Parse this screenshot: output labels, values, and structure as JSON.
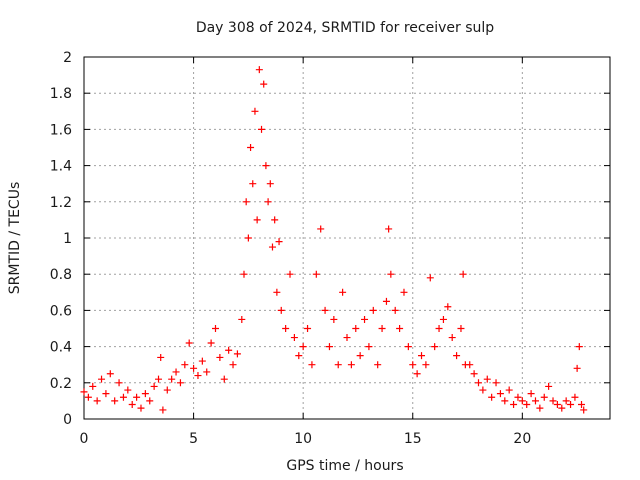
{
  "chart_data": {
    "type": "scatter",
    "title": "Day 308 of 2024, SRMTID for receiver sulp",
    "xlabel": "GPS time / hours",
    "ylabel": "SRMTID / TECUs",
    "xlim": [
      0,
      24
    ],
    "ylim": [
      0,
      2
    ],
    "x_ticks": [
      {
        "value": 0,
        "label": "0"
      },
      {
        "value": 5,
        "label": "5"
      },
      {
        "value": 10,
        "label": "10"
      },
      {
        "value": 15,
        "label": "15"
      },
      {
        "value": 20,
        "label": "20"
      }
    ],
    "y_ticks": [
      {
        "value": 0,
        "label": "0"
      },
      {
        "value": 0.2,
        "label": "0.2"
      },
      {
        "value": 0.4,
        "label": "0.4"
      },
      {
        "value": 0.6,
        "label": "0.6"
      },
      {
        "value": 0.8,
        "label": "0.8"
      },
      {
        "value": 1.0,
        "label": "1"
      },
      {
        "value": 1.2,
        "label": "1.2"
      },
      {
        "value": 1.4,
        "label": "1.4"
      },
      {
        "value": 1.6,
        "label": "1.6"
      },
      {
        "value": 1.8,
        "label": "1.8"
      },
      {
        "value": 2.0,
        "label": "2"
      }
    ],
    "grid": true,
    "marker": "+",
    "color": "#ff0000",
    "series": [
      {
        "name": "SRMTID",
        "points": [
          [
            0.0,
            0.15
          ],
          [
            0.2,
            0.12
          ],
          [
            0.4,
            0.18
          ],
          [
            0.6,
            0.1
          ],
          [
            0.8,
            0.22
          ],
          [
            1.0,
            0.14
          ],
          [
            1.2,
            0.25
          ],
          [
            1.4,
            0.1
          ],
          [
            1.6,
            0.2
          ],
          [
            1.8,
            0.12
          ],
          [
            2.0,
            0.16
          ],
          [
            2.2,
            0.08
          ],
          [
            2.4,
            0.12
          ],
          [
            2.6,
            0.06
          ],
          [
            2.8,
            0.14
          ],
          [
            3.0,
            0.1
          ],
          [
            3.2,
            0.18
          ],
          [
            3.4,
            0.22
          ],
          [
            3.5,
            0.34
          ],
          [
            3.6,
            0.05
          ],
          [
            3.8,
            0.16
          ],
          [
            4.0,
            0.22
          ],
          [
            4.2,
            0.26
          ],
          [
            4.4,
            0.2
          ],
          [
            4.6,
            0.3
          ],
          [
            4.8,
            0.42
          ],
          [
            5.0,
            0.28
          ],
          [
            5.2,
            0.24
          ],
          [
            5.4,
            0.32
          ],
          [
            5.6,
            0.26
          ],
          [
            5.8,
            0.42
          ],
          [
            6.0,
            0.5
          ],
          [
            6.2,
            0.34
          ],
          [
            6.4,
            0.22
          ],
          [
            6.6,
            0.38
          ],
          [
            6.8,
            0.3
          ],
          [
            7.0,
            0.36
          ],
          [
            7.2,
            0.55
          ],
          [
            7.3,
            0.8
          ],
          [
            7.4,
            1.2
          ],
          [
            7.5,
            1.0
          ],
          [
            7.6,
            1.5
          ],
          [
            7.7,
            1.3
          ],
          [
            7.8,
            1.7
          ],
          [
            7.9,
            1.1
          ],
          [
            8.0,
            1.93
          ],
          [
            8.1,
            1.6
          ],
          [
            8.2,
            1.85
          ],
          [
            8.3,
            1.4
          ],
          [
            8.4,
            1.2
          ],
          [
            8.5,
            1.3
          ],
          [
            8.6,
            0.95
          ],
          [
            8.7,
            1.1
          ],
          [
            8.8,
            0.7
          ],
          [
            8.9,
            0.98
          ],
          [
            9.0,
            0.6
          ],
          [
            9.2,
            0.5
          ],
          [
            9.4,
            0.8
          ],
          [
            9.6,
            0.45
          ],
          [
            9.8,
            0.35
          ],
          [
            10.0,
            0.4
          ],
          [
            10.2,
            0.5
          ],
          [
            10.4,
            0.3
          ],
          [
            10.6,
            0.8
          ],
          [
            10.8,
            1.05
          ],
          [
            11.0,
            0.6
          ],
          [
            11.2,
            0.4
          ],
          [
            11.4,
            0.55
          ],
          [
            11.6,
            0.3
          ],
          [
            11.8,
            0.7
          ],
          [
            12.0,
            0.45
          ],
          [
            12.2,
            0.3
          ],
          [
            12.4,
            0.5
          ],
          [
            12.6,
            0.35
          ],
          [
            12.8,
            0.55
          ],
          [
            13.0,
            0.4
          ],
          [
            13.2,
            0.6
          ],
          [
            13.4,
            0.3
          ],
          [
            13.6,
            0.5
          ],
          [
            13.8,
            0.65
          ],
          [
            13.9,
            1.05
          ],
          [
            14.0,
            0.8
          ],
          [
            14.2,
            0.6
          ],
          [
            14.4,
            0.5
          ],
          [
            14.6,
            0.7
          ],
          [
            14.8,
            0.4
          ],
          [
            15.0,
            0.3
          ],
          [
            15.2,
            0.25
          ],
          [
            15.4,
            0.35
          ],
          [
            15.6,
            0.3
          ],
          [
            15.8,
            0.78
          ],
          [
            16.0,
            0.4
          ],
          [
            16.2,
            0.5
          ],
          [
            16.4,
            0.55
          ],
          [
            16.6,
            0.62
          ],
          [
            16.8,
            0.45
          ],
          [
            17.0,
            0.35
          ],
          [
            17.2,
            0.5
          ],
          [
            17.3,
            0.8
          ],
          [
            17.4,
            0.3
          ],
          [
            17.6,
            0.3
          ],
          [
            17.8,
            0.25
          ],
          [
            18.0,
            0.2
          ],
          [
            18.2,
            0.16
          ],
          [
            18.4,
            0.22
          ],
          [
            18.6,
            0.12
          ],
          [
            18.8,
            0.2
          ],
          [
            19.0,
            0.14
          ],
          [
            19.2,
            0.1
          ],
          [
            19.4,
            0.16
          ],
          [
            19.6,
            0.08
          ],
          [
            19.8,
            0.12
          ],
          [
            20.0,
            0.1
          ],
          [
            20.2,
            0.08
          ],
          [
            20.4,
            0.14
          ],
          [
            20.6,
            0.1
          ],
          [
            20.8,
            0.06
          ],
          [
            21.0,
            0.12
          ],
          [
            21.2,
            0.18
          ],
          [
            21.4,
            0.1
          ],
          [
            21.6,
            0.08
          ],
          [
            21.8,
            0.06
          ],
          [
            22.0,
            0.1
          ],
          [
            22.2,
            0.08
          ],
          [
            22.4,
            0.12
          ],
          [
            22.5,
            0.28
          ],
          [
            22.6,
            0.4
          ],
          [
            22.7,
            0.08
          ],
          [
            22.8,
            0.05
          ]
        ]
      }
    ]
  }
}
